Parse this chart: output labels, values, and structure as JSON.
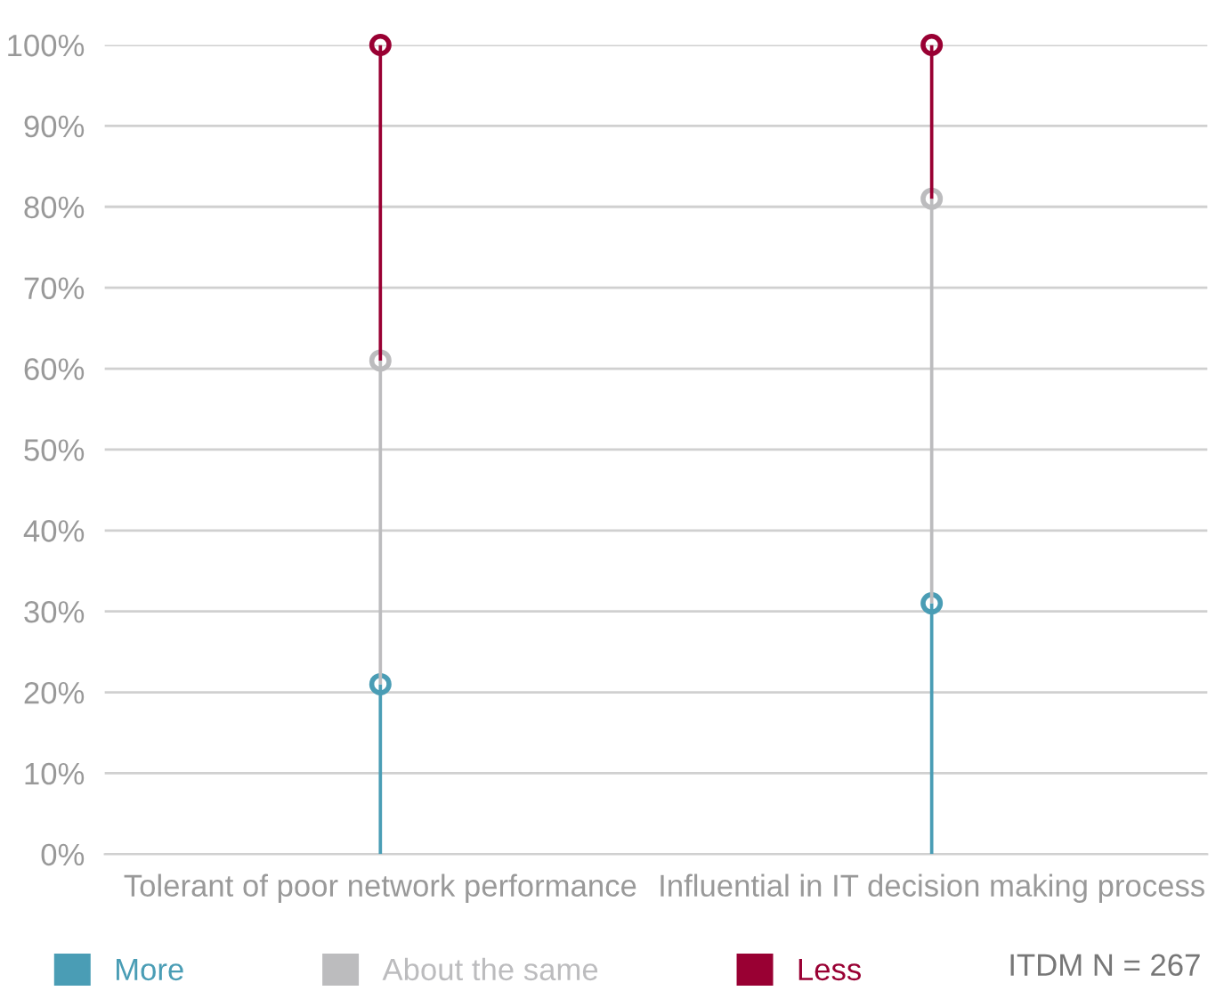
{
  "chart_data": {
    "type": "bar",
    "stacked": true,
    "marker": "circle",
    "categories": [
      "Tolerant of poor network performance",
      "Influential in IT decision making process"
    ],
    "series": [
      {
        "name": "More",
        "color": "#4a9db5",
        "values": [
          21,
          31
        ]
      },
      {
        "name": "About the same",
        "color": "#bcbcbe",
        "values": [
          40,
          50
        ]
      },
      {
        "name": "Less",
        "color": "#990033",
        "values": [
          39,
          19
        ]
      }
    ],
    "ylim": [
      0,
      100
    ],
    "yticks": [
      {
        "value": 0,
        "label": "0%"
      },
      {
        "value": 10,
        "label": "10%"
      },
      {
        "value": 20,
        "label": "20%"
      },
      {
        "value": 30,
        "label": "30%"
      },
      {
        "value": 40,
        "label": "40%"
      },
      {
        "value": 50,
        "label": "50%"
      },
      {
        "value": 60,
        "label": "60%"
      },
      {
        "value": 70,
        "label": "70%"
      },
      {
        "value": 80,
        "label": "80%"
      },
      {
        "value": 90,
        "label": "90%"
      },
      {
        "value": 100,
        "label": "100%"
      }
    ],
    "grid": "y",
    "legend": "bottom",
    "annotations": [
      "ITDM N = 267"
    ]
  }
}
